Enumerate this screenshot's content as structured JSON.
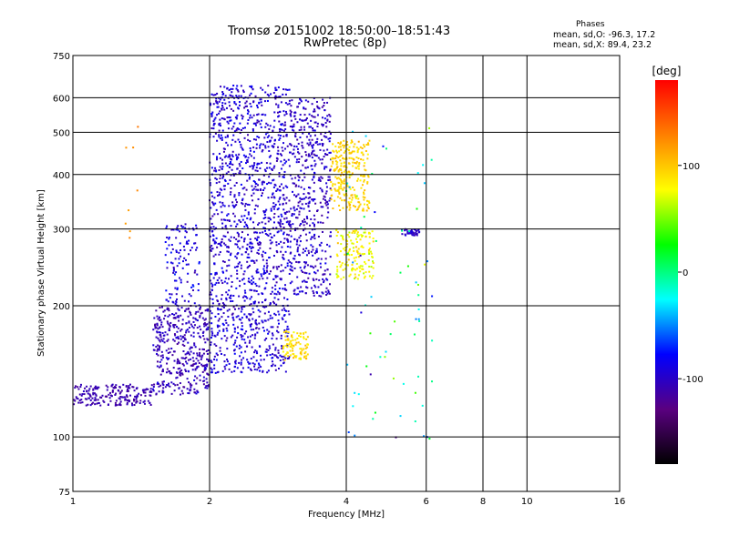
{
  "header": {
    "title_line1": "Tromsø 20151002 18:50:00–18:51:43",
    "title_line2": "RwPretec (8p)"
  },
  "phases_box": {
    "heading": "Phases",
    "o_stats": "mean, sd,O: -96.3, 17.2",
    "x_stats": "mean, sd,X:  89.4, 23.2"
  },
  "chart_data": {
    "type": "scatter",
    "xlabel": "Frequency [MHz]",
    "ylabel": "Stationary phase Virtual Height [km]",
    "x_scale": "log",
    "y_scale": "log",
    "xlim": [
      1,
      16
    ],
    "ylim": [
      75,
      750
    ],
    "x_ticks": [
      1,
      2,
      4,
      6,
      8,
      10,
      16
    ],
    "x_tick_labels": [
      "1",
      "2",
      "4",
      "6",
      "8",
      "10",
      "16"
    ],
    "y_ticks": [
      75,
      100,
      200,
      300,
      400,
      500,
      600,
      750
    ],
    "y_tick_labels": [
      "75",
      "100",
      "200",
      "300",
      "400",
      "500",
      "600",
      "750"
    ],
    "grid": true,
    "colorbar": {
      "label": "[deg]",
      "range": [
        -180,
        180
      ],
      "ticks": [
        100,
        0,
        -100
      ],
      "tick_labels": [
        "100",
        "0",
        "-100"
      ],
      "colors": [
        "#000000",
        "#5a0080",
        "#0000ff",
        "#00ffff",
        "#00ff00",
        "#ffff00",
        "#ff8000",
        "#ff0000"
      ]
    },
    "clusters": [
      {
        "fmin": 1.0,
        "fmax": 1.5,
        "hmin": 118,
        "hmax": 132,
        "n": 200,
        "phase": -110,
        "spread": 12
      },
      {
        "fmin": 1.5,
        "fmax": 2.0,
        "hmin": 125,
        "hmax": 200,
        "n": 420,
        "phase": -105,
        "spread": 18
      },
      {
        "fmin": 2.0,
        "fmax": 3.0,
        "hmin": 140,
        "hmax": 640,
        "n": 1400,
        "phase": -95,
        "spread": 22
      },
      {
        "fmin": 3.0,
        "fmax": 3.7,
        "hmin": 210,
        "hmax": 600,
        "n": 520,
        "phase": -100,
        "spread": 20
      },
      {
        "fmin": 1.6,
        "fmax": 1.9,
        "hmin": 200,
        "hmax": 310,
        "n": 120,
        "phase": -90,
        "spread": 25
      },
      {
        "fmin": 3.7,
        "fmax": 4.5,
        "hmin": 330,
        "hmax": 480,
        "n": 260,
        "phase": 95,
        "spread": 20
      },
      {
        "fmin": 3.8,
        "fmax": 4.6,
        "hmin": 230,
        "hmax": 300,
        "n": 150,
        "phase": 80,
        "spread": 25
      },
      {
        "fmin": 2.9,
        "fmax": 3.3,
        "hmin": 150,
        "hmax": 175,
        "n": 90,
        "phase": 90,
        "spread": 20
      },
      {
        "fmin": 5.3,
        "fmax": 5.8,
        "hmin": 290,
        "hmax": 300,
        "n": 40,
        "phase": -100,
        "spread": 15
      },
      {
        "fmin": 4.0,
        "fmax": 6.2,
        "hmin": 95,
        "hmax": 520,
        "n": 70,
        "phase": -20,
        "spread": 110
      },
      {
        "fmin": 1.3,
        "fmax": 1.4,
        "hmin": 280,
        "hmax": 520,
        "n": 8,
        "phase": 120,
        "spread": 15
      }
    ]
  }
}
